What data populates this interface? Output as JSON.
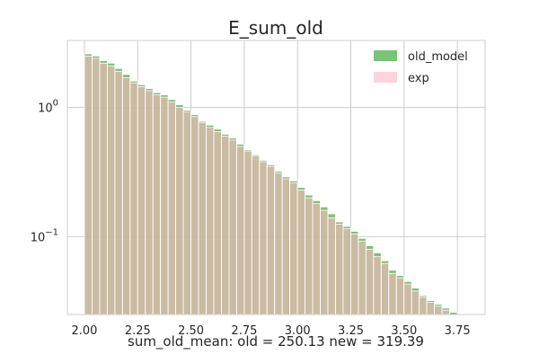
{
  "chart_data": {
    "type": "bar",
    "title": "E_sum_old",
    "xlabel": "sum_old_mean: old = 250.13 new = 319.39",
    "ylabel": "",
    "xlim": [
      1.92,
      3.88
    ],
    "ylim": [
      0.025,
      3.3
    ],
    "yscale": "log",
    "grid": true,
    "legend_position": "top-right",
    "x_ticks": [
      2.0,
      2.25,
      2.5,
      2.75,
      3.0,
      3.25,
      3.5,
      3.75
    ],
    "x_tick_labels": [
      "2.00",
      "2.25",
      "2.50",
      "2.75",
      "3.00",
      "3.25",
      "3.50",
      "3.75"
    ],
    "y_ticks": [
      {
        "value": 1,
        "base": "10",
        "exponent": "0"
      },
      {
        "value": 0.1,
        "base": "10",
        "exponent": "−1"
      }
    ],
    "bin_start": 2.0,
    "bin_width": 0.0357,
    "series": [
      {
        "name": "old_model",
        "color": "#4daf4a",
        "values": [
          2.6,
          2.5,
          2.3,
          2.2,
          2.0,
          1.8,
          1.6,
          1.5,
          1.4,
          1.3,
          1.25,
          1.15,
          1.05,
          0.95,
          0.88,
          0.78,
          0.73,
          0.68,
          0.62,
          0.58,
          0.52,
          0.47,
          0.43,
          0.39,
          0.36,
          0.32,
          0.29,
          0.27,
          0.24,
          0.21,
          0.19,
          0.17,
          0.15,
          0.13,
          0.12,
          0.11,
          0.097,
          0.085,
          0.075,
          0.065,
          0.055,
          0.05,
          0.045,
          0.04,
          0.035,
          0.032,
          0.03,
          0.028,
          0.026,
          0.025,
          0.025
        ]
      },
      {
        "name": "exp",
        "color": "#ffb6c1",
        "values": [
          2.5,
          2.4,
          2.2,
          2.1,
          1.9,
          1.7,
          1.55,
          1.45,
          1.35,
          1.25,
          1.2,
          1.1,
          1.0,
          0.92,
          0.85,
          0.76,
          0.7,
          0.65,
          0.6,
          0.56,
          0.5,
          0.46,
          0.42,
          0.38,
          0.35,
          0.31,
          0.28,
          0.26,
          0.23,
          0.2,
          0.18,
          0.16,
          0.14,
          0.125,
          0.115,
          0.105,
          0.092,
          0.08,
          0.07,
          0.062,
          0.052,
          0.048,
          0.043,
          0.038,
          0.034,
          0.031,
          0.029,
          0.027,
          0.025,
          0.025,
          0.025
        ]
      }
    ]
  },
  "legend": {
    "items": [
      {
        "label": "old_model",
        "color": "#4daf4a"
      },
      {
        "label": "exp",
        "color": "#ffb6c1"
      }
    ]
  },
  "colors": {
    "axes_frame": "#cccccc",
    "grid": "#cccccc",
    "text": "#262626",
    "background": "#ffffff"
  }
}
